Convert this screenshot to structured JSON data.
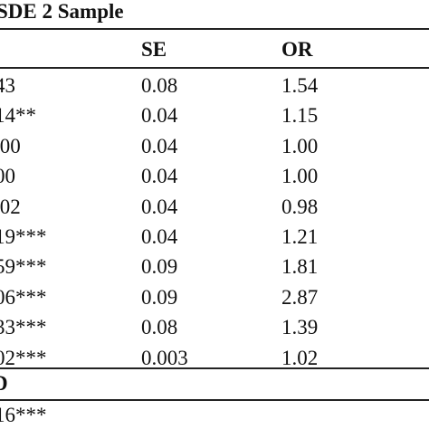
{
  "table": {
    "title": "SDE 2 Sample",
    "headers": {
      "col1": "",
      "se": "SE",
      "or": "OR"
    },
    "rows": [
      {
        "coef": "43",
        "se": "0.08",
        "or": "1.54"
      },
      {
        "coef": "14**",
        "se": "0.04",
        "or": "1.15"
      },
      {
        "coef": ".00",
        "se": "0.04",
        "or": "1.00"
      },
      {
        "coef": "00",
        "se": "0.04",
        "or": "1.00"
      },
      {
        "coef": ".02",
        "se": "0.04",
        "or": "0.98"
      },
      {
        "coef": "19***",
        "se": "0.04",
        "or": "1.21"
      },
      {
        "coef": "59***",
        "se": "0.09",
        "or": "1.81"
      },
      {
        "coef": "06***",
        "se": "0.09",
        "or": "2.87"
      },
      {
        "coef": "33***",
        "se": "0.08",
        "or": "1.39"
      },
      {
        "coef": "02***",
        "se": "0.003",
        "or": "1.02"
      }
    ],
    "section_label": "D",
    "last_row": {
      "coef": "16***"
    }
  }
}
